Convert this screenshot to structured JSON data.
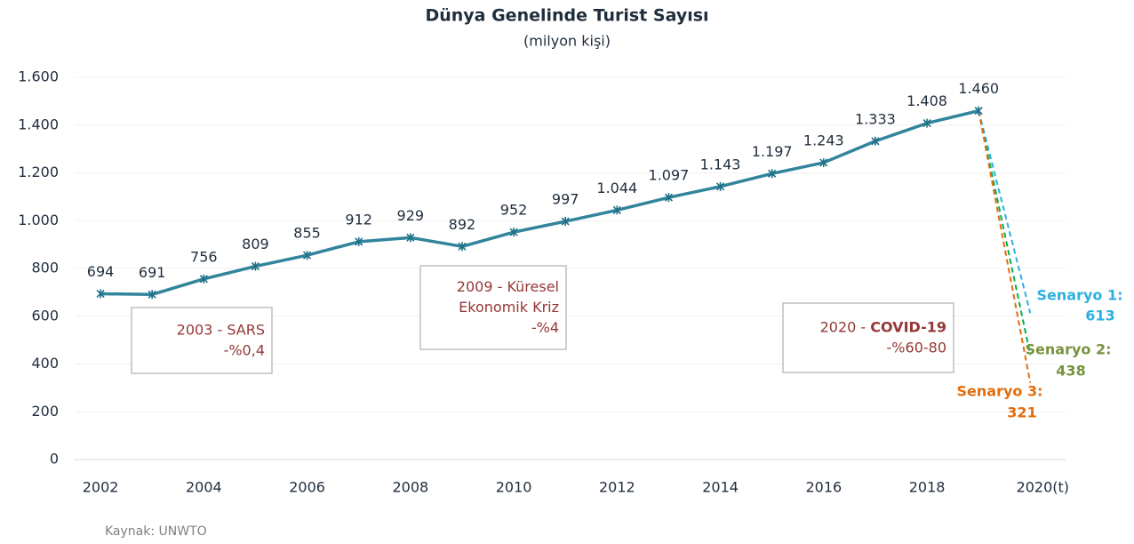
{
  "chart_data": {
    "type": "line",
    "title": "Dünya Genelinde Turist Sayısı",
    "subtitle": "(milyon kişi)",
    "source": "Kaynak: UNWTO",
    "x": [
      2002,
      2003,
      2004,
      2005,
      2006,
      2007,
      2008,
      2009,
      2010,
      2011,
      2012,
      2013,
      2014,
      2015,
      2016,
      2017,
      2018,
      2019
    ],
    "series": [
      {
        "color": "#31849b",
        "values": [
          694,
          691,
          756,
          809,
          855,
          912,
          929,
          892,
          952,
          997,
          1044,
          1097,
          1143,
          1197,
          1243,
          1333,
          1408,
          1460
        ],
        "value_labels": [
          "694",
          "691",
          "756",
          "809",
          "855",
          "912",
          "929",
          "892",
          "952",
          "997",
          "1.044",
          "1.097",
          "1.143",
          "1.197",
          "1.243",
          "1.333",
          "1.408",
          "1.460"
        ]
      },
      {
        "name": "Senaryo 1:",
        "color": "#2bb0e0",
        "label_color": "#2bb0e0",
        "x": [
          2019,
          2020
        ],
        "values": [
          1460,
          613
        ]
      },
      {
        "name": "Senaryo 2:",
        "color": "#00b050",
        "label_color": "#77933c",
        "x": [
          2019,
          2020
        ],
        "values": [
          1460,
          438
        ]
      },
      {
        "name": "Senaryo 3:",
        "color": "#e46c0a",
        "label_color": "#e46c0a",
        "x": [
          2019,
          2020
        ],
        "values": [
          1460,
          321
        ]
      }
    ],
    "annotations": [
      {
        "lines": [
          [
            "2003 - SARS"
          ],
          [
            "-%0,4"
          ]
        ]
      },
      {
        "lines": [
          [
            "2009 - Küresel"
          ],
          [
            "Ekonomik Kriz"
          ],
          [
            "-%4"
          ]
        ]
      },
      {
        "lines": [
          [
            "2020 - ",
            "COVID-19"
          ],
          [
            "-%60-80"
          ]
        ]
      }
    ],
    "annotation_color": "#953735",
    "xlim": [
      2001.5,
      2020.7
    ],
    "xticks": [
      2002,
      2004,
      2006,
      2008,
      2010,
      2012,
      2014,
      2016,
      2018,
      {
        "value": 2020,
        "label": "2020(t)"
      }
    ],
    "ylim": [
      0,
      1600
    ],
    "yticks": [
      0,
      200,
      400,
      600,
      800,
      {
        "value": 1000,
        "label": "1.000"
      },
      {
        "value": 1200,
        "label": "1.200"
      },
      {
        "value": 1400,
        "label": "1.400"
      },
      {
        "value": 1600,
        "label": "1.600"
      }
    ],
    "grid": true
  }
}
